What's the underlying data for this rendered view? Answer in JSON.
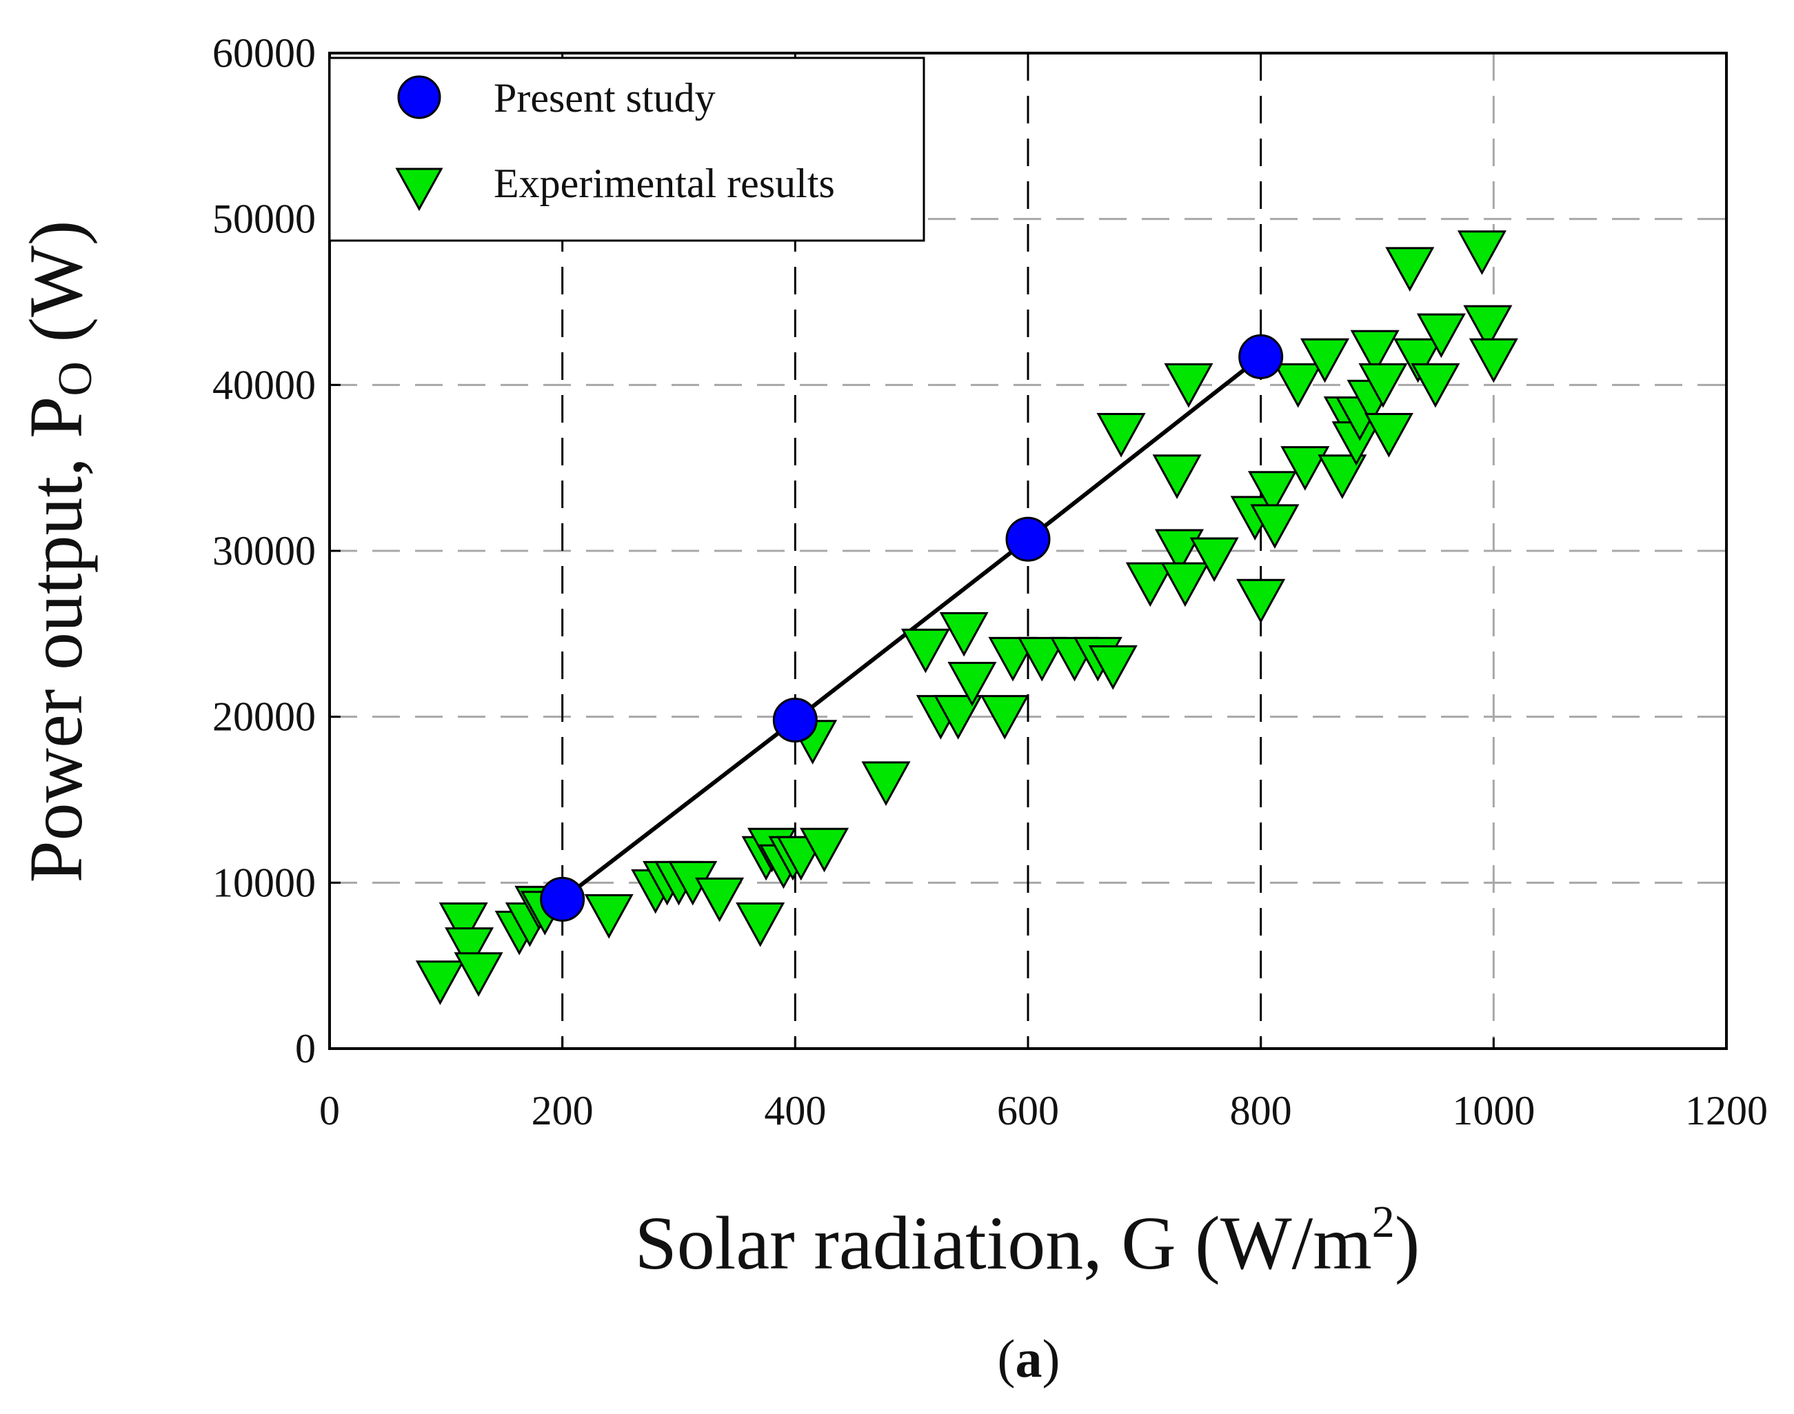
{
  "chart_data": {
    "type": "scatter",
    "title": "",
    "xlabel_main": "Solar radiation, G (W/m",
    "xlabel_sup": "2",
    "xlabel_end": ")",
    "ylabel_main": "Power output, P",
    "ylabel_sub": "O",
    "ylabel_end": " (W)",
    "caption_open": "(",
    "caption_letter": "a",
    "caption_close": ")",
    "xlim": [
      0,
      1200
    ],
    "ylim": [
      0,
      60000
    ],
    "xticks": [
      0,
      200,
      400,
      600,
      800,
      1000,
      1200
    ],
    "yticks": [
      0,
      10000,
      20000,
      30000,
      40000,
      50000,
      60000
    ],
    "xtick_labels": [
      "0",
      "200",
      "400",
      "600",
      "800",
      "1000",
      "1200"
    ],
    "ytick_labels": [
      "0",
      "10000",
      "20000",
      "30000",
      "40000",
      "50000",
      "60000"
    ],
    "vertical_gridlines_x": [
      200,
      400,
      600,
      800,
      1000
    ],
    "horizontal_gridlines_y": [
      10000,
      20000,
      30000,
      40000,
      50000
    ],
    "legend_position": "top-left",
    "series": [
      {
        "name": "Present study",
        "marker": "circle",
        "color": "#0000ff",
        "line": true,
        "line_color": "#000000",
        "x": [
          200,
          400,
          600,
          800
        ],
        "y": [
          9000,
          19800,
          30700,
          41700
        ]
      },
      {
        "name": "Experimental results",
        "marker": "triangle-down",
        "color": "#00e600",
        "line": false,
        "x": [
          95,
          115,
          120,
          128,
          163,
          172,
          180,
          185,
          240,
          280,
          290,
          300,
          312,
          335,
          370,
          375,
          380,
          390,
          398,
          405,
          415,
          425,
          478,
          512,
          525,
          540,
          545,
          552,
          580,
          587,
          612,
          640,
          660,
          673,
          680,
          705,
          728,
          730,
          735,
          738,
          760,
          795,
          800,
          810,
          812,
          832,
          838,
          855,
          870,
          875,
          882,
          885,
          895,
          898,
          905,
          910,
          928,
          935,
          950,
          955,
          990,
          995,
          1000
        ],
        "y": [
          4000,
          7500,
          6000,
          4500,
          7000,
          7500,
          8500,
          8200,
          8000,
          9500,
          10000,
          10000,
          10000,
          9000,
          7500,
          11500,
          12000,
          11000,
          11500,
          11500,
          18500,
          12000,
          16000,
          24000,
          20000,
          20000,
          25000,
          22000,
          20000,
          23500,
          23500,
          23500,
          23500,
          23000,
          37000,
          28000,
          34500,
          30000,
          28000,
          40000,
          29500,
          32000,
          27000,
          33500,
          31500,
          40000,
          35000,
          41500,
          34500,
          38000,
          36500,
          38000,
          39000,
          42000,
          40000,
          37000,
          47000,
          41500,
          40000,
          43000,
          48000,
          43500,
          41500
        ]
      }
    ]
  }
}
